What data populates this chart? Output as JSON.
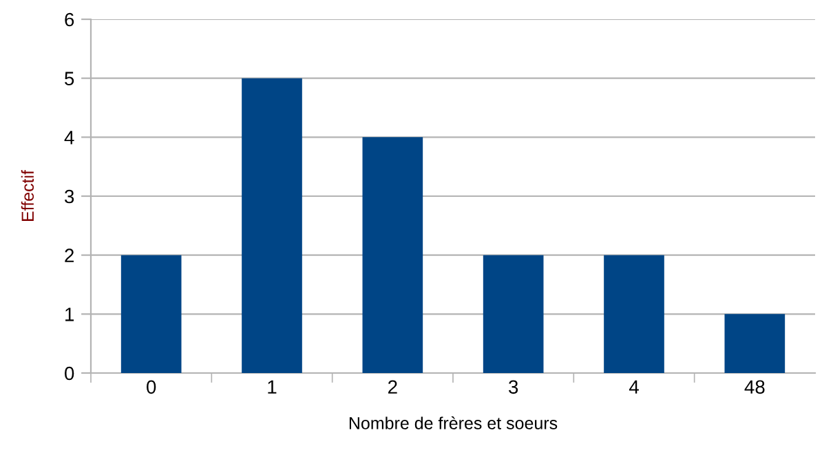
{
  "chart_data": {
    "type": "bar",
    "xlabel": "Nombre de frères et soeurs",
    "ylabel": "Effectif",
    "categories": [
      "0",
      "1",
      "2",
      "3",
      "4",
      "48"
    ],
    "values": [
      2,
      5,
      4,
      2,
      2,
      1
    ],
    "color": "#004586",
    "ylim": [
      0,
      6
    ],
    "yticks": [
      0,
      1,
      2,
      3,
      4,
      5,
      6
    ],
    "grid": "y"
  }
}
